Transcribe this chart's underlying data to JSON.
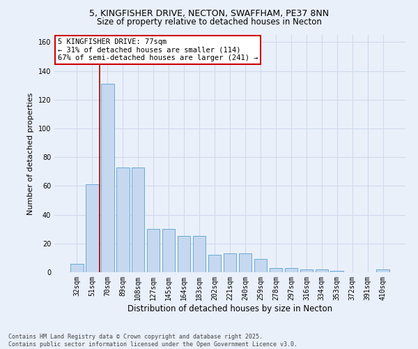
{
  "title1": "5, KINGFISHER DRIVE, NECTON, SWAFFHAM, PE37 8NN",
  "title2": "Size of property relative to detached houses in Necton",
  "xlabel": "Distribution of detached houses by size in Necton",
  "ylabel": "Number of detached properties",
  "categories": [
    "32sqm",
    "51sqm",
    "70sqm",
    "89sqm",
    "108sqm",
    "127sqm",
    "145sqm",
    "164sqm",
    "183sqm",
    "202sqm",
    "221sqm",
    "240sqm",
    "259sqm",
    "278sqm",
    "297sqm",
    "316sqm",
    "334sqm",
    "353sqm",
    "372sqm",
    "391sqm",
    "410sqm"
  ],
  "values": [
    6,
    61,
    131,
    73,
    73,
    30,
    30,
    25,
    25,
    12,
    13,
    13,
    9,
    3,
    3,
    2,
    2,
    1,
    0,
    0,
    2
  ],
  "bar_color": "#c5d8f0",
  "bar_edge_color": "#6aaad4",
  "vline_color": "#aa0000",
  "vline_x": 1.5,
  "annotation_title": "5 KINGFISHER DRIVE: 77sqm",
  "annotation_line1": "← 31% of detached houses are smaller (114)",
  "annotation_line2": "67% of semi-detached houses are larger (241) →",
  "annotation_box_facecolor": "#ffffff",
  "annotation_box_edgecolor": "#cc0000",
  "ylim": [
    0,
    165
  ],
  "yticks": [
    0,
    20,
    40,
    60,
    80,
    100,
    120,
    140,
    160
  ],
  "footer1": "Contains HM Land Registry data © Crown copyright and database right 2025.",
  "footer2": "Contains public sector information licensed under the Open Government Licence v3.0.",
  "bg_color": "#eaf0fa",
  "grid_color": "#d0daea"
}
